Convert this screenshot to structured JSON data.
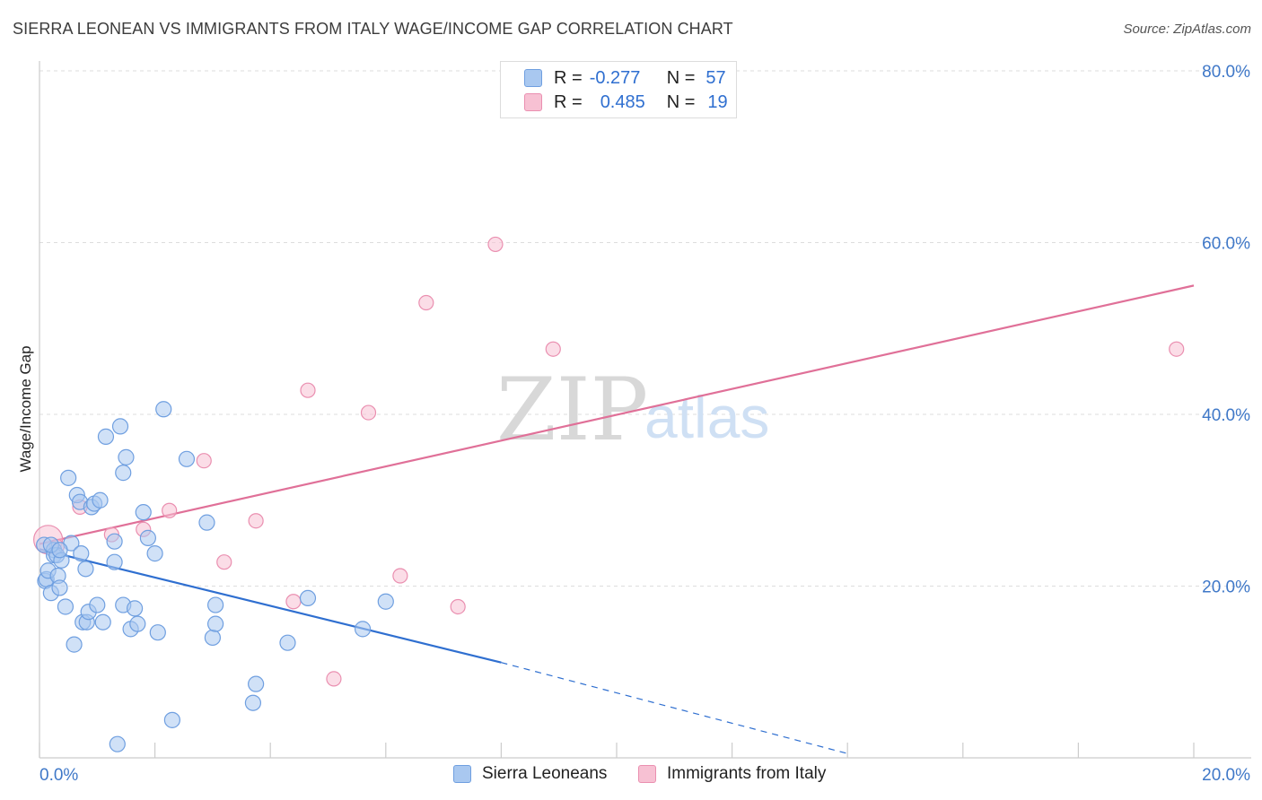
{
  "title": "SIERRA LEONEAN VS IMMIGRANTS FROM ITALY WAGE/INCOME GAP CORRELATION CHART",
  "source": "Source: ZipAtlas.com",
  "watermark": {
    "zip": "ZIP",
    "atlas": "atlas"
  },
  "legend": {
    "series1": {
      "r_label": "R =",
      "r_value": "-0.277",
      "n_label": "N =",
      "n_value": "57"
    },
    "series2": {
      "r_label": "R =",
      "r_value": "0.485",
      "n_label": "N =",
      "n_value": "19"
    }
  },
  "bottom_legend": {
    "series1": "Sierra Leoneans",
    "series2": "Immigrants from Italy"
  },
  "colors": {
    "blue_fill": "#a9c8f0",
    "blue_stroke": "#6f9fe0",
    "blue_line": "#2f6fd0",
    "pink_fill": "#f7c1d3",
    "pink_stroke": "#ea8fb0",
    "pink_line": "#e07098",
    "grid": "#dddddd",
    "axis_text": "#3f78c8"
  },
  "chart_data": {
    "type": "scatter",
    "title": "SIERRA LEONEAN VS IMMIGRANTS FROM ITALY WAGE/INCOME GAP CORRELATION CHART",
    "xlabel": "",
    "ylabel": "Wage/Income Gap",
    "xlim": [
      0,
      20
    ],
    "ylim": [
      0,
      80
    ],
    "x_tick_labels": [
      "0.0%",
      "20.0%"
    ],
    "y_ticks": [
      20,
      40,
      60,
      80
    ],
    "y_tick_labels": [
      "20.0%",
      "40.0%",
      "60.0%",
      "80.0%"
    ],
    "grid": true,
    "series": [
      {
        "name": "Sierra Leoneans",
        "r": -0.277,
        "n": 57,
        "trend": {
          "x0": 0,
          "y0": 24.3,
          "x1": 8,
          "y1": 11.1,
          "dashed_to_x": 14.0,
          "dashed_to_y": 0.5
        },
        "points": [
          [
            0.08,
            24.8
          ],
          [
            0.1,
            20.6
          ],
          [
            0.12,
            20.8
          ],
          [
            0.15,
            21.8
          ],
          [
            0.2,
            19.2
          ],
          [
            0.25,
            24.2
          ],
          [
            0.25,
            23.6
          ],
          [
            0.3,
            23.6
          ],
          [
            0.32,
            21.2
          ],
          [
            0.35,
            19.8
          ],
          [
            0.38,
            23.0
          ],
          [
            0.45,
            17.6
          ],
          [
            0.5,
            32.6
          ],
          [
            0.55,
            25.0
          ],
          [
            0.6,
            13.2
          ],
          [
            0.65,
            30.6
          ],
          [
            0.7,
            29.8
          ],
          [
            0.72,
            23.8
          ],
          [
            0.75,
            15.8
          ],
          [
            0.8,
            22.0
          ],
          [
            0.82,
            15.8
          ],
          [
            0.85,
            17.0
          ],
          [
            0.9,
            29.2
          ],
          [
            0.95,
            29.6
          ],
          [
            1.0,
            17.8
          ],
          [
            1.05,
            30.0
          ],
          [
            1.1,
            15.8
          ],
          [
            1.15,
            37.4
          ],
          [
            1.3,
            25.2
          ],
          [
            1.3,
            22.8
          ],
          [
            1.4,
            38.6
          ],
          [
            1.45,
            33.2
          ],
          [
            1.45,
            17.8
          ],
          [
            1.5,
            35.0
          ],
          [
            1.58,
            15.0
          ],
          [
            1.65,
            17.4
          ],
          [
            1.7,
            15.6
          ],
          [
            1.8,
            28.6
          ],
          [
            1.88,
            25.6
          ],
          [
            2.0,
            23.8
          ],
          [
            2.05,
            14.6
          ],
          [
            2.15,
            40.6
          ],
          [
            2.3,
            4.4
          ],
          [
            2.55,
            34.8
          ],
          [
            2.9,
            27.4
          ],
          [
            3.0,
            14.0
          ],
          [
            3.05,
            15.6
          ],
          [
            3.05,
            17.8
          ],
          [
            3.7,
            6.4
          ],
          [
            3.75,
            8.6
          ],
          [
            4.3,
            13.4
          ],
          [
            4.65,
            18.6
          ],
          [
            5.6,
            15.0
          ],
          [
            6.0,
            18.2
          ],
          [
            1.35,
            1.6
          ],
          [
            0.2,
            24.8
          ],
          [
            0.35,
            24.2
          ]
        ]
      },
      {
        "name": "Immigrants from Italy",
        "r": 0.485,
        "n": 19,
        "trend": {
          "x0": 0,
          "y0": 24.9,
          "x1": 20,
          "y1": 55.0
        },
        "points": [
          [
            0.15,
            25.4
          ],
          [
            0.3,
            24.6
          ],
          [
            0.7,
            29.2
          ],
          [
            1.25,
            26.0
          ],
          [
            1.8,
            26.6
          ],
          [
            2.25,
            28.8
          ],
          [
            2.85,
            34.6
          ],
          [
            3.2,
            22.8
          ],
          [
            3.75,
            27.6
          ],
          [
            4.4,
            18.2
          ],
          [
            4.65,
            42.8
          ],
          [
            5.1,
            9.2
          ],
          [
            5.7,
            40.2
          ],
          [
            6.25,
            21.2
          ],
          [
            6.7,
            53.0
          ],
          [
            7.25,
            17.6
          ],
          [
            7.9,
            59.8
          ],
          [
            8.9,
            47.6
          ],
          [
            19.7,
            47.6
          ]
        ]
      }
    ]
  }
}
